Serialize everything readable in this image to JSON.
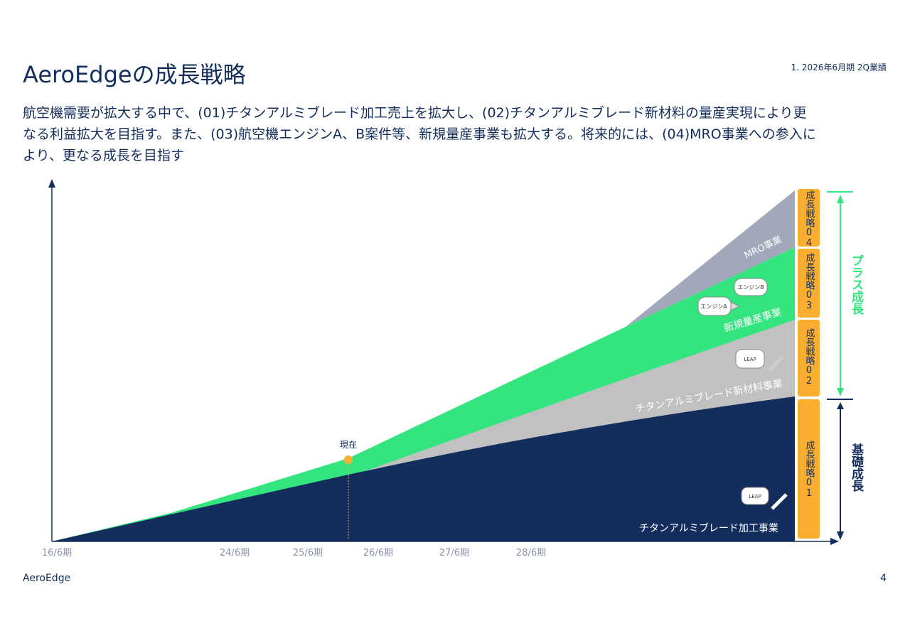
{
  "header": {
    "title": "AeroEdgeの成長戦略",
    "section": "1. 2026年6月期 2Q業績"
  },
  "description": [
    "航空機需要が拡大する中で、(01)チタンアルミブレード加工売上を拡大し、(02)チタンアルミブレード新材料の量産実現により更",
    "なる利益拡大を目指す。また、(03)航空機エンジンA、B案件等、新規量産事業も拡大する。将来的には、(04)MRO事業への参入に",
    "より、更なる成長を目指す"
  ],
  "diagram": {
    "x_labels": [
      "16/6期",
      "24/6期",
      "25/6期",
      "26/6期",
      "27/6期",
      "28/6期"
    ],
    "now_label": "現在",
    "layers": [
      "MRO事業",
      "新規量産事業",
      "チタンアルミブレード新材料事業",
      "チタンアルミブレード加工事業"
    ],
    "engines": [
      "エンジンB",
      "エンジンA",
      "LEAP",
      "LEAP"
    ],
    "strategies": [
      "成長戦略04",
      "成長戦略03",
      "成長戦略02",
      "成長戦略01"
    ],
    "brackets": [
      "プラス成長",
      "基礎成長"
    ]
  },
  "footer": {
    "brand": "AeroEdge",
    "page": "4"
  }
}
